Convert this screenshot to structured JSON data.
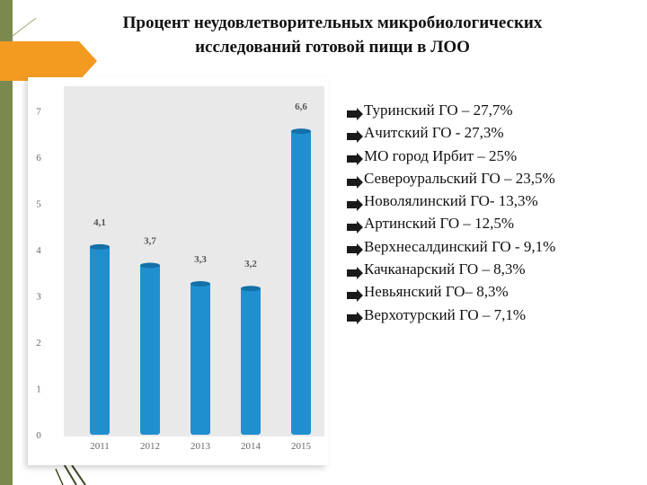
{
  "title": {
    "line1": "Процент неудовлетворительных микробиологических",
    "line2": "исследований готовой пищи в ЛОО"
  },
  "colors": {
    "bar": "#1f8fd0",
    "bar_dark": "#1470a8",
    "plot_bg": "#e9e9e9",
    "accent": "#f39a21",
    "side_bar": "#7a8a4e"
  },
  "chart_data": {
    "type": "bar",
    "categories": [
      "2011",
      "2012",
      "2013",
      "2014",
      "2015"
    ],
    "values": [
      4.1,
      3.7,
      3.3,
      3.2,
      6.6
    ],
    "data_labels": [
      "4,1",
      "3,7",
      "3,3",
      "3,2",
      "6,6"
    ],
    "y_ticks": [
      0,
      1,
      2,
      3,
      4,
      5,
      6,
      7
    ],
    "ylim": [
      0,
      7.3
    ],
    "grid": false,
    "legend": "none"
  },
  "bullets": [
    "Туринский ГО – 27,7%",
    "Ачитский ГО -  27,3%",
    "МО город Ирбит – 25%",
    "Североуральский ГО – 23,5%",
    "Новолялинский ГО- 13,3%",
    "Артинский ГО – 12,5%",
    "Верхнесалдинский ГО  - 9,1%",
    "Качканарский ГО – 8,3%",
    "Невьянский ГО– 8,3%",
    "Верхотурский ГО – 7,1%"
  ],
  "icons": {
    "bullet": "arrow-bullet-icon"
  }
}
